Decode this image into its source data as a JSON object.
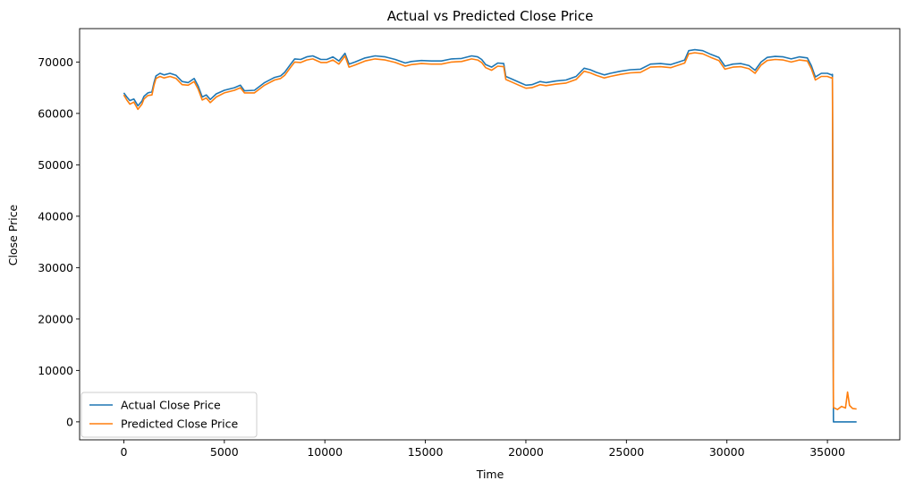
{
  "chart_data": {
    "type": "line",
    "title": "Actual vs Predicted Close Price",
    "xlabel": "Time",
    "ylabel": "Close Price",
    "xlim": [
      -2200,
      38600
    ],
    "ylim": [
      -3500,
      76500
    ],
    "xticks": [
      0,
      5000,
      10000,
      15000,
      20000,
      25000,
      30000,
      35000
    ],
    "yticks": [
      0,
      10000,
      20000,
      30000,
      40000,
      50000,
      60000,
      70000
    ],
    "grid": false,
    "legend_position": "lower-left",
    "series": [
      {
        "name": "Actual Close Price",
        "color": "#1f77b4",
        "points": [
          [
            0,
            64000
          ],
          [
            150,
            63200
          ],
          [
            300,
            62500
          ],
          [
            500,
            62800
          ],
          [
            700,
            61500
          ],
          [
            900,
            62400
          ],
          [
            1000,
            63300
          ],
          [
            1200,
            64000
          ],
          [
            1400,
            64200
          ],
          [
            1500,
            66000
          ],
          [
            1600,
            67300
          ],
          [
            1800,
            67800
          ],
          [
            2000,
            67500
          ],
          [
            2300,
            67800
          ],
          [
            2600,
            67400
          ],
          [
            2900,
            66200
          ],
          [
            3200,
            66000
          ],
          [
            3500,
            66800
          ],
          [
            3700,
            65300
          ],
          [
            3900,
            63200
          ],
          [
            4100,
            63600
          ],
          [
            4300,
            62700
          ],
          [
            4600,
            63800
          ],
          [
            5000,
            64500
          ],
          [
            5500,
            65000
          ],
          [
            5800,
            65500
          ],
          [
            6000,
            64400
          ],
          [
            6500,
            64500
          ],
          [
            7000,
            66000
          ],
          [
            7500,
            67000
          ],
          [
            7800,
            67300
          ],
          [
            8000,
            68000
          ],
          [
            8300,
            69600
          ],
          [
            8500,
            70600
          ],
          [
            8800,
            70500
          ],
          [
            9100,
            71000
          ],
          [
            9400,
            71200
          ],
          [
            9800,
            70500
          ],
          [
            10100,
            70500
          ],
          [
            10400,
            71000
          ],
          [
            10700,
            70200
          ],
          [
            11000,
            71700
          ],
          [
            11200,
            69600
          ],
          [
            11500,
            70000
          ],
          [
            12000,
            70800
          ],
          [
            12500,
            71200
          ],
          [
            13000,
            71000
          ],
          [
            13500,
            70500
          ],
          [
            14000,
            69800
          ],
          [
            14300,
            70100
          ],
          [
            14800,
            70300
          ],
          [
            15300,
            70200
          ],
          [
            15800,
            70200
          ],
          [
            16300,
            70600
          ],
          [
            16800,
            70700
          ],
          [
            17300,
            71200
          ],
          [
            17600,
            71000
          ],
          [
            17800,
            70500
          ],
          [
            18000,
            69500
          ],
          [
            18300,
            69000
          ],
          [
            18600,
            69800
          ],
          [
            18900,
            69700
          ],
          [
            19000,
            67200
          ],
          [
            19300,
            66700
          ],
          [
            19700,
            66000
          ],
          [
            20000,
            65500
          ],
          [
            20300,
            65600
          ],
          [
            20700,
            66200
          ],
          [
            21000,
            66000
          ],
          [
            21500,
            66300
          ],
          [
            22000,
            66500
          ],
          [
            22500,
            67200
          ],
          [
            22900,
            68800
          ],
          [
            23200,
            68500
          ],
          [
            23500,
            68000
          ],
          [
            23900,
            67500
          ],
          [
            24200,
            67800
          ],
          [
            24700,
            68200
          ],
          [
            25200,
            68500
          ],
          [
            25700,
            68600
          ],
          [
            26200,
            69600
          ],
          [
            26700,
            69700
          ],
          [
            27200,
            69500
          ],
          [
            27600,
            70000
          ],
          [
            27900,
            70400
          ],
          [
            28100,
            72200
          ],
          [
            28400,
            72400
          ],
          [
            28800,
            72200
          ],
          [
            29200,
            71500
          ],
          [
            29600,
            70900
          ],
          [
            29900,
            69200
          ],
          [
            30300,
            69600
          ],
          [
            30700,
            69700
          ],
          [
            31100,
            69300
          ],
          [
            31400,
            68400
          ],
          [
            31700,
            70000
          ],
          [
            32000,
            70900
          ],
          [
            32400,
            71100
          ],
          [
            32800,
            71000
          ],
          [
            33200,
            70600
          ],
          [
            33600,
            71000
          ],
          [
            34000,
            70800
          ],
          [
            34200,
            69300
          ],
          [
            34400,
            67100
          ],
          [
            34700,
            67800
          ],
          [
            35000,
            67800
          ],
          [
            35200,
            67500
          ],
          [
            35250,
            67600
          ],
          [
            35300,
            0
          ],
          [
            36450,
            0
          ]
        ]
      },
      {
        "name": "Predicted Close Price",
        "color": "#ff7f0e",
        "points": [
          [
            0,
            63600
          ],
          [
            150,
            62600
          ],
          [
            300,
            61800
          ],
          [
            500,
            62200
          ],
          [
            700,
            60800
          ],
          [
            900,
            61800
          ],
          [
            1000,
            62800
          ],
          [
            1200,
            63500
          ],
          [
            1400,
            63600
          ],
          [
            1500,
            65500
          ],
          [
            1600,
            66800
          ],
          [
            1800,
            67200
          ],
          [
            2000,
            66900
          ],
          [
            2300,
            67200
          ],
          [
            2600,
            66800
          ],
          [
            2900,
            65600
          ],
          [
            3200,
            65500
          ],
          [
            3500,
            66200
          ],
          [
            3700,
            64700
          ],
          [
            3900,
            62600
          ],
          [
            4100,
            63000
          ],
          [
            4300,
            62100
          ],
          [
            4600,
            63200
          ],
          [
            5000,
            64000
          ],
          [
            5500,
            64500
          ],
          [
            5800,
            65000
          ],
          [
            6000,
            64000
          ],
          [
            6500,
            64000
          ],
          [
            7000,
            65500
          ],
          [
            7500,
            66500
          ],
          [
            7800,
            66800
          ],
          [
            8000,
            67400
          ],
          [
            8300,
            69000
          ],
          [
            8500,
            70000
          ],
          [
            8800,
            69900
          ],
          [
            9100,
            70400
          ],
          [
            9400,
            70600
          ],
          [
            9800,
            69900
          ],
          [
            10100,
            69900
          ],
          [
            10400,
            70400
          ],
          [
            10700,
            69600
          ],
          [
            11000,
            71200
          ],
          [
            11200,
            69000
          ],
          [
            11500,
            69400
          ],
          [
            12000,
            70200
          ],
          [
            12500,
            70600
          ],
          [
            13000,
            70400
          ],
          [
            13500,
            69900
          ],
          [
            14000,
            69200
          ],
          [
            14300,
            69500
          ],
          [
            14800,
            69700
          ],
          [
            15300,
            69600
          ],
          [
            15800,
            69600
          ],
          [
            16300,
            70000
          ],
          [
            16800,
            70100
          ],
          [
            17300,
            70600
          ],
          [
            17600,
            70400
          ],
          [
            17800,
            69900
          ],
          [
            18000,
            68900
          ],
          [
            18300,
            68400
          ],
          [
            18600,
            69200
          ],
          [
            18900,
            69100
          ],
          [
            19000,
            66600
          ],
          [
            19300,
            66100
          ],
          [
            19700,
            65400
          ],
          [
            20000,
            64900
          ],
          [
            20300,
            65000
          ],
          [
            20700,
            65600
          ],
          [
            21000,
            65400
          ],
          [
            21500,
            65700
          ],
          [
            22000,
            65900
          ],
          [
            22500,
            66600
          ],
          [
            22900,
            68200
          ],
          [
            23200,
            67900
          ],
          [
            23500,
            67400
          ],
          [
            23900,
            66900
          ],
          [
            24200,
            67200
          ],
          [
            24700,
            67600
          ],
          [
            25200,
            67900
          ],
          [
            25700,
            68000
          ],
          [
            26200,
            69000
          ],
          [
            26700,
            69100
          ],
          [
            27200,
            68900
          ],
          [
            27600,
            69400
          ],
          [
            27900,
            69800
          ],
          [
            28100,
            71600
          ],
          [
            28400,
            71800
          ],
          [
            28800,
            71600
          ],
          [
            29200,
            70900
          ],
          [
            29600,
            70300
          ],
          [
            29900,
            68600
          ],
          [
            30300,
            69000
          ],
          [
            30700,
            69100
          ],
          [
            31100,
            68700
          ],
          [
            31400,
            67800
          ],
          [
            31700,
            69400
          ],
          [
            32000,
            70300
          ],
          [
            32400,
            70500
          ],
          [
            32800,
            70400
          ],
          [
            33200,
            70000
          ],
          [
            33600,
            70400
          ],
          [
            34000,
            70200
          ],
          [
            34200,
            68700
          ],
          [
            34400,
            66500
          ],
          [
            34700,
            67200
          ],
          [
            35000,
            67200
          ],
          [
            35200,
            66900
          ],
          [
            35250,
            67000
          ],
          [
            35300,
            2800
          ],
          [
            35500,
            2400
          ],
          [
            35700,
            3000
          ],
          [
            35900,
            2700
          ],
          [
            36000,
            5800
          ],
          [
            36100,
            3200
          ],
          [
            36250,
            2600
          ],
          [
            36450,
            2500
          ]
        ]
      }
    ]
  }
}
